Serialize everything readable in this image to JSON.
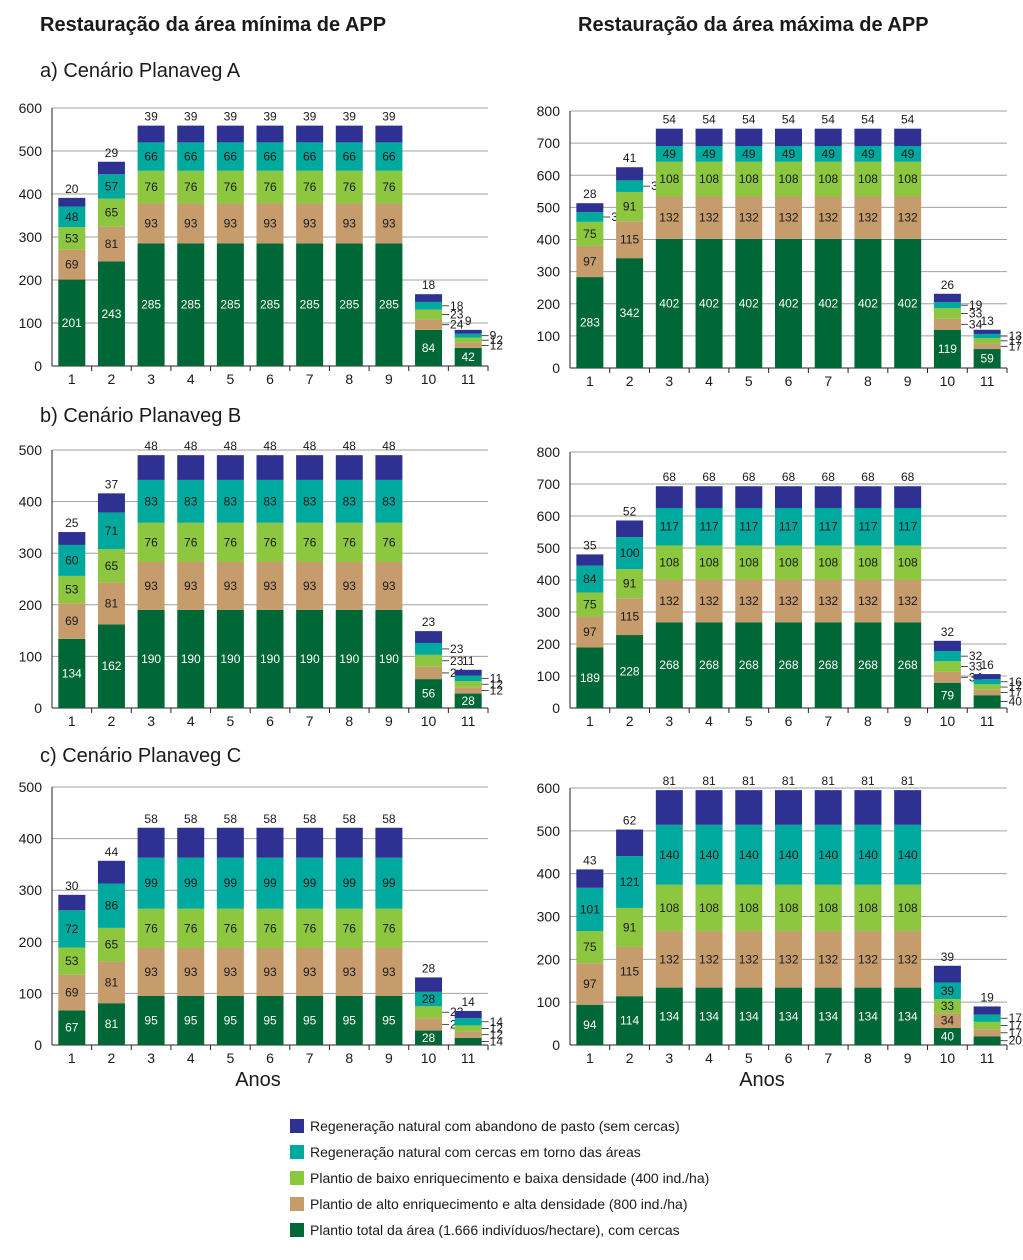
{
  "titles": {
    "left": "Restauração da área mínima de APP",
    "right": "Restauração da área máxima de APP"
  },
  "scenarios": [
    "a) Cenário Planaveg A",
    "b) Cenário Planaveg B",
    "c) Cenário Planaveg C"
  ],
  "xlabel": "Anos",
  "colors": [
    "#006837",
    "#c69c6d",
    "#8dc63f",
    "#00a99d",
    "#2e3192"
  ],
  "legend": [
    "Regeneração natural com abandono de pasto (sem cercas)",
    "Regeneração natural com cercas em torno das áreas",
    "Plantio de baixo enriquecimento e baixa densidade (400 ind./ha)",
    "Plantio de alto enriquecimento e alta densidade (800 ind./ha)",
    "Plantio total da área (1.666 indivíduos/hectare), com cercas"
  ],
  "chart_data": [
    {
      "type": "bar",
      "stacked": true,
      "scenario": "A",
      "area": "mínima",
      "categories": [
        "1",
        "2",
        "3",
        "4",
        "5",
        "6",
        "7",
        "8",
        "9",
        "10",
        "11"
      ],
      "ylim": [
        0,
        600
      ],
      "yticks": [
        0,
        100,
        200,
        300,
        400,
        500,
        600
      ],
      "series": [
        {
          "name": "Plantio total da área (1.666 indivíduos/hectare), com cercas",
          "values": [
            201,
            243,
            285,
            285,
            285,
            285,
            285,
            285,
            285,
            84,
            42
          ]
        },
        {
          "name": "Plantio de alto enriquecimento e alta densidade (800 ind./ha)",
          "values": [
            69,
            81,
            93,
            93,
            93,
            93,
            93,
            93,
            93,
            24,
            12
          ]
        },
        {
          "name": "Plantio de baixo enriquecimento e baixa densidade (400 ind./ha)",
          "values": [
            53,
            65,
            76,
            76,
            76,
            76,
            76,
            76,
            76,
            23,
            12
          ]
        },
        {
          "name": "Regeneração natural com cercas em torno das áreas",
          "values": [
            48,
            57,
            66,
            66,
            66,
            66,
            66,
            66,
            66,
            18,
            9
          ]
        },
        {
          "name": "Regeneração natural com abandono de pasto (sem cercas)",
          "values": [
            20,
            29,
            39,
            39,
            39,
            39,
            39,
            39,
            39,
            18,
            9
          ]
        }
      ]
    },
    {
      "type": "bar",
      "stacked": true,
      "scenario": "A",
      "area": "máxima",
      "categories": [
        "1",
        "2",
        "3",
        "4",
        "5",
        "6",
        "7",
        "8",
        "9",
        "10",
        "11"
      ],
      "ylim": [
        0,
        800
      ],
      "yticks": [
        0,
        100,
        200,
        300,
        400,
        500,
        600,
        700,
        800
      ],
      "series": [
        {
          "name": "Plantio total da área (1.666 indivíduos/hectare), com cercas",
          "values": [
            283,
            342,
            402,
            402,
            402,
            402,
            402,
            402,
            402,
            119,
            59
          ]
        },
        {
          "name": "Plantio de alto enriquecimento e alta densidade (800 ind./ha)",
          "values": [
            97,
            115,
            132,
            132,
            132,
            132,
            132,
            132,
            132,
            34,
            17
          ]
        },
        {
          "name": "Plantio de baixo enriquecimento e baixa densidade (400 ind./ha)",
          "values": [
            75,
            91,
            108,
            108,
            108,
            108,
            108,
            108,
            108,
            33,
            17
          ]
        },
        {
          "name": "Regeneração natural com cercas em torno das áreas",
          "values": [
            30,
            36,
            49,
            49,
            49,
            49,
            49,
            49,
            49,
            19,
            13
          ]
        },
        {
          "name": "Regeneração natural com abandono de pasto (sem cercas)",
          "values": [
            28,
            41,
            54,
            54,
            54,
            54,
            54,
            54,
            54,
            26,
            13
          ]
        }
      ]
    },
    {
      "type": "bar",
      "stacked": true,
      "scenario": "B",
      "area": "mínima",
      "categories": [
        "1",
        "2",
        "3",
        "4",
        "5",
        "6",
        "7",
        "8",
        "9",
        "10",
        "11"
      ],
      "ylim": [
        0,
        500
      ],
      "yticks": [
        0,
        100,
        200,
        300,
        400,
        500
      ],
      "series": [
        {
          "name": "Plantio total da área (1.666 indivíduos/hectare), com cercas",
          "values": [
            134,
            162,
            190,
            190,
            190,
            190,
            190,
            190,
            190,
            56,
            28
          ]
        },
        {
          "name": "Plantio de alto enriquecimento e alta densidade (800 ind./ha)",
          "values": [
            69,
            81,
            93,
            93,
            93,
            93,
            93,
            93,
            93,
            24,
            12
          ]
        },
        {
          "name": "Plantio de baixo enriquecimento e baixa densidade (400 ind./ha)",
          "values": [
            53,
            65,
            76,
            76,
            76,
            76,
            76,
            76,
            76,
            23,
            12
          ]
        },
        {
          "name": "Regeneração natural com cercas em torno das áreas",
          "values": [
            60,
            71,
            83,
            83,
            83,
            83,
            83,
            83,
            83,
            23,
            11
          ]
        },
        {
          "name": "Regeneração natural com abandono de pasto (sem cercas)",
          "values": [
            25,
            37,
            48,
            48,
            48,
            48,
            48,
            48,
            48,
            23,
            11
          ]
        }
      ]
    },
    {
      "type": "bar",
      "stacked": true,
      "scenario": "B",
      "area": "máxima",
      "categories": [
        "1",
        "2",
        "3",
        "4",
        "5",
        "6",
        "7",
        "8",
        "9",
        "10",
        "11"
      ],
      "ylim": [
        0,
        800
      ],
      "yticks": [
        0,
        100,
        200,
        300,
        400,
        500,
        600,
        700,
        800
      ],
      "series": [
        {
          "name": "Plantio total da área (1.666 indivíduos/hectare), com cercas",
          "values": [
            189,
            228,
            268,
            268,
            268,
            268,
            268,
            268,
            268,
            79,
            40
          ]
        },
        {
          "name": "Plantio de alto enriquecimento e alta densidade (800 ind./ha)",
          "values": [
            97,
            115,
            132,
            132,
            132,
            132,
            132,
            132,
            132,
            34,
            17
          ]
        },
        {
          "name": "Plantio de baixo enriquecimento e baixa densidade (400 ind./ha)",
          "values": [
            75,
            91,
            108,
            108,
            108,
            108,
            108,
            108,
            108,
            33,
            17
          ]
        },
        {
          "name": "Regeneração natural com cercas em torno das áreas",
          "values": [
            84,
            100,
            117,
            117,
            117,
            117,
            117,
            117,
            117,
            32,
            16
          ]
        },
        {
          "name": "Regeneração natural com abandono de pasto (sem cercas)",
          "values": [
            35,
            52,
            68,
            68,
            68,
            68,
            68,
            68,
            68,
            32,
            16
          ]
        }
      ]
    },
    {
      "type": "bar",
      "stacked": true,
      "scenario": "C",
      "area": "mínima",
      "categories": [
        "1",
        "2",
        "3",
        "4",
        "5",
        "6",
        "7",
        "8",
        "9",
        "10",
        "11"
      ],
      "ylim": [
        0,
        500
      ],
      "yticks": [
        0,
        100,
        200,
        300,
        400,
        500
      ],
      "series": [
        {
          "name": "Plantio total da área (1.666 indivíduos/hectare), com cercas",
          "values": [
            67,
            81,
            95,
            95,
            95,
            95,
            95,
            95,
            95,
            28,
            14
          ]
        },
        {
          "name": "Plantio de alto enriquecimento e alta densidade (800 ind./ha)",
          "values": [
            69,
            81,
            93,
            93,
            93,
            93,
            93,
            93,
            93,
            24,
            12
          ]
        },
        {
          "name": "Plantio de baixo enriquecimento e baixa densidade (400 ind./ha)",
          "values": [
            53,
            65,
            76,
            76,
            76,
            76,
            76,
            76,
            76,
            23,
            12
          ]
        },
        {
          "name": "Regeneração natural com cercas em torno das áreas",
          "values": [
            72,
            86,
            99,
            99,
            99,
            99,
            99,
            99,
            99,
            28,
            14
          ]
        },
        {
          "name": "Regeneração natural com abandono de pasto (sem cercas)",
          "values": [
            30,
            44,
            58,
            58,
            58,
            58,
            58,
            58,
            58,
            28,
            14
          ]
        }
      ]
    },
    {
      "type": "bar",
      "stacked": true,
      "scenario": "C",
      "area": "máxima",
      "categories": [
        "1",
        "2",
        "3",
        "4",
        "5",
        "6",
        "7",
        "8",
        "9",
        "10",
        "11"
      ],
      "ylim": [
        0,
        600
      ],
      "yticks": [
        0,
        100,
        200,
        300,
        400,
        500,
        600
      ],
      "series": [
        {
          "name": "Plantio total da área (1.666 indivíduos/hectare), com cercas",
          "values": [
            94,
            114,
            134,
            134,
            134,
            134,
            134,
            134,
            134,
            40,
            20
          ]
        },
        {
          "name": "Plantio de alto enriquecimento e alta densidade (800 ind./ha)",
          "values": [
            97,
            115,
            132,
            132,
            132,
            132,
            132,
            132,
            132,
            34,
            17
          ]
        },
        {
          "name": "Plantio de baixo enriquecimento e baixa densidade (400 ind./ha)",
          "values": [
            75,
            91,
            108,
            108,
            108,
            108,
            108,
            108,
            108,
            33,
            17
          ]
        },
        {
          "name": "Regeneração natural com cercas em torno das áreas",
          "values": [
            101,
            121,
            140,
            140,
            140,
            140,
            140,
            140,
            140,
            39,
            17
          ]
        },
        {
          "name": "Regeneração natural com abandono de pasto (sem cercas)",
          "values": [
            43,
            62,
            81,
            81,
            81,
            81,
            81,
            81,
            81,
            39,
            19
          ]
        }
      ]
    }
  ]
}
